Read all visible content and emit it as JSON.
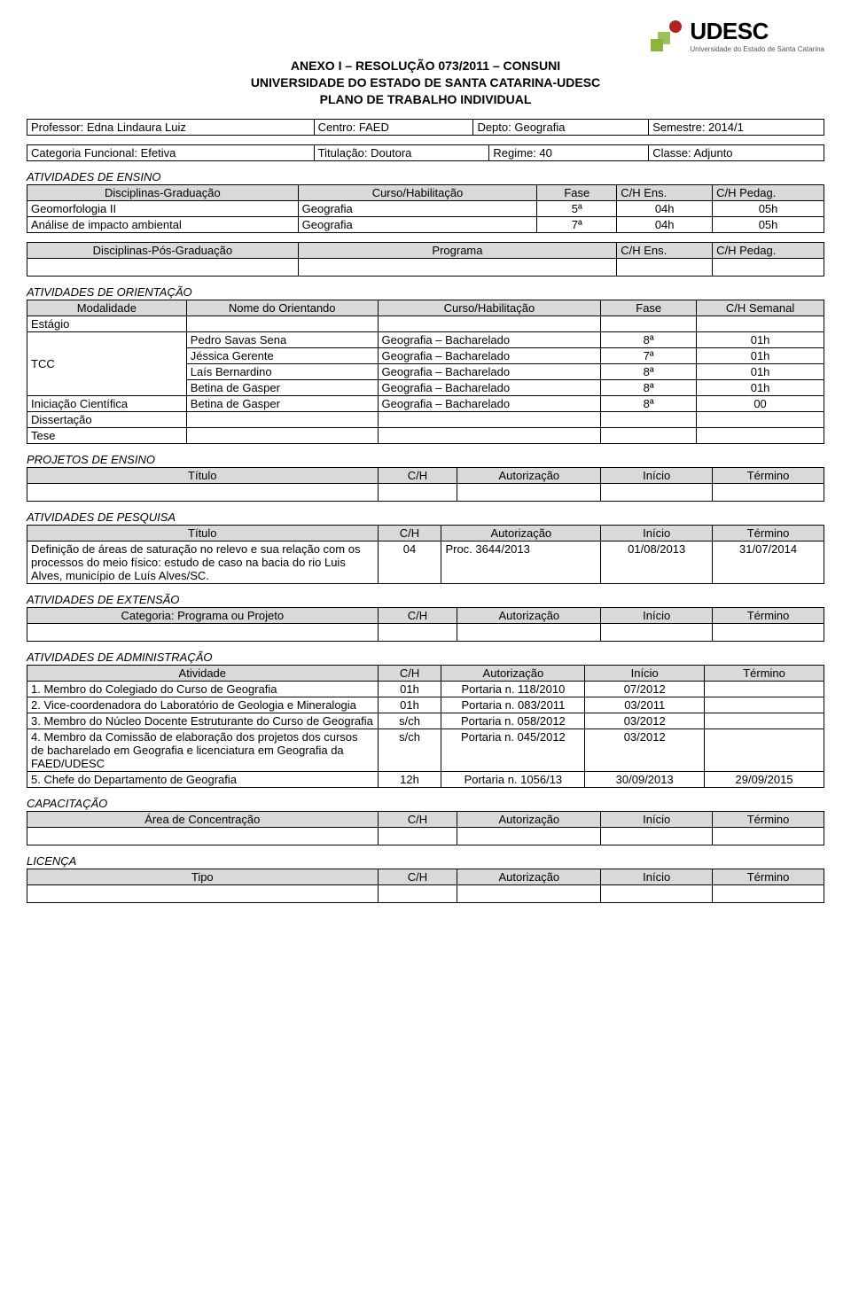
{
  "logo": {
    "text": "UDESC",
    "subtitle": "Universidade do Estado de Santa Catarina"
  },
  "title": {
    "line1": "ANEXO I – RESOLUÇÃO 073/2011 – CONSUNI",
    "line2": "UNIVERSIDADE DO ESTADO DE SANTA CATARINA-UDESC",
    "line3": "PLANO DE TRABALHO INDIVIDUAL"
  },
  "info1": {
    "professor_label": "Professor: Edna Lindaura Luiz",
    "centro_label": "Centro: FAED",
    "depto_label": "Depto: Geografia",
    "semestre_label": "Semestre: 2014/1"
  },
  "info2": {
    "categoria_label": "Categoria Funcional: Efetiva",
    "titulacao_label": "Titulação: Doutora",
    "regime_label": "Regime: 40",
    "classe_label": "Classe: Adjunto"
  },
  "ensino": {
    "heading": "ATIVIDADES DE ENSINO",
    "grad_headers": [
      "Disciplinas-Graduação",
      "Curso/Habilitação",
      "Fase",
      "C/H Ens.",
      "C/H Pedag."
    ],
    "grad_rows": [
      [
        "Geomorfologia II",
        "Geografia",
        "5ª",
        "04h",
        "05h"
      ],
      [
        "Análise de impacto ambiental",
        "Geografia",
        "7ª",
        "04h",
        "05h"
      ]
    ],
    "pos_headers": [
      "Disciplinas-Pós-Graduação",
      "Programa",
      "C/H Ens.",
      "C/H Pedag."
    ]
  },
  "orientacao": {
    "heading": "ATIVIDADES DE ORIENTAÇÃO",
    "headers": [
      "Modalidade",
      "Nome do Orientando",
      "Curso/Habilitação",
      "Fase",
      "C/H Semanal"
    ],
    "rows": [
      [
        "Estágio",
        "",
        "",
        "",
        ""
      ],
      [
        "TCC",
        "Pedro Savas Sena",
        "Geografia – Bacharelado",
        "8ª",
        "01h"
      ],
      [
        "",
        "Jéssica Gerente",
        "Geografia – Bacharelado",
        "7ª",
        "01h"
      ],
      [
        "",
        "Laís Bernardino",
        "Geografia – Bacharelado",
        "8ª",
        "01h"
      ],
      [
        "",
        "Betina de Gasper",
        "Geografia – Bacharelado",
        "8ª",
        "01h"
      ],
      [
        "Iniciação Científica",
        "Betina de Gasper",
        "Geografia – Bacharelado",
        "8ª",
        "00"
      ],
      [
        "Dissertação",
        "",
        "",
        "",
        ""
      ],
      [
        "Tese",
        "",
        "",
        "",
        ""
      ]
    ],
    "tcc_rowspan_start": 1,
    "tcc_rowspan_len": 4
  },
  "projetos_ensino": {
    "heading": "PROJETOS DE ENSINO",
    "headers": [
      "Título",
      "C/H",
      "Autorização",
      "Início",
      "Término"
    ]
  },
  "pesquisa": {
    "heading": "ATIVIDADES DE PESQUISA",
    "headers": [
      "Título",
      "C/H",
      "Autorização",
      "Início",
      "Término"
    ],
    "rows": [
      [
        "Definição de áreas de saturação no relevo e sua relação com os processos do meio físico: estudo de caso na bacia do rio Luis Alves, município de Luís Alves/SC.",
        "04",
        "Proc. 3644/2013",
        "01/08/2013",
        "31/07/2014"
      ]
    ]
  },
  "extensao": {
    "heading": "ATIVIDADES DE EXTENSÃO",
    "headers": [
      "Categoria: Programa ou Projeto",
      "C/H",
      "Autorização",
      "Início",
      "Término"
    ]
  },
  "administracao": {
    "heading": "ATIVIDADES DE ADMINISTRAÇÃO",
    "headers": [
      "Atividade",
      "C/H",
      "Autorização",
      "Início",
      "Término"
    ],
    "rows": [
      [
        "1. Membro do Colegiado do Curso de Geografia",
        "01h",
        "Portaria n. 118/2010",
        "07/2012",
        ""
      ],
      [
        "2. Vice-coordenadora do Laboratório de Geologia e Mineralogia",
        "01h",
        "Portaria n. 083/2011",
        "03/2011",
        ""
      ],
      [
        "3. Membro do Núcleo Docente Estruturante do Curso de Geografia",
        "s/ch",
        "Portaria n. 058/2012",
        "03/2012",
        ""
      ],
      [
        "4. Membro da Comissão de elaboração dos projetos dos cursos de bacharelado em Geografia e licenciatura em Geografia da FAED/UDESC",
        "s/ch",
        "Portaria n. 045/2012",
        "03/2012",
        ""
      ],
      [
        "5. Chefe do Departamento de Geografia",
        "12h",
        "Portaria n. 1056/13",
        "30/09/2013",
        "29/09/2015"
      ]
    ]
  },
  "capacitacao": {
    "heading": "CAPACITAÇÃO",
    "headers": [
      "Área de Concentração",
      "C/H",
      "Autorização",
      "Início",
      "Término"
    ]
  },
  "licenca": {
    "heading": "LICENÇA",
    "headers": [
      "Tipo",
      "C/H",
      "Autorização",
      "Início",
      "Término"
    ]
  },
  "colors": {
    "header_bg": "#d9d9d9",
    "border": "#000000",
    "logo_green": "#8db43f",
    "logo_red": "#b22222"
  }
}
